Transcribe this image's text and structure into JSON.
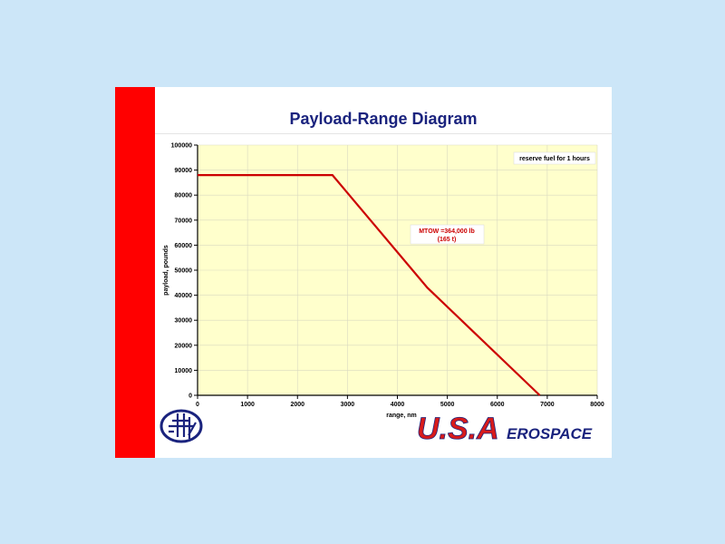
{
  "slide": {
    "title": "Payload-Range Diagram",
    "brand_text": "U.S.A",
    "brand_suffix": "EROSPACE",
    "colors": {
      "background": "#cce6f8",
      "side_bar": "#ff0000",
      "title": "#1a237e",
      "plot_bg": "#ffffcc",
      "line": "#cc0000",
      "brand_red": "#d81b1b",
      "brand_blue": "#1a237e"
    },
    "logo_icon": "aircraft-emblem-icon"
  },
  "chart_data": {
    "type": "line",
    "title": "",
    "xlabel": "range, nm",
    "ylabel": "payload, pounds",
    "xlim": [
      0,
      8000
    ],
    "ylim": [
      0,
      100000
    ],
    "x_ticks": [
      0,
      1000,
      2000,
      3000,
      4000,
      5000,
      6000,
      7000,
      8000
    ],
    "x_tick_labels": [
      "0",
      "1000",
      "2000",
      "3000",
      "4000",
      "5000",
      "6000",
      "7000",
      "8000"
    ],
    "y_ticks": [
      0,
      10000,
      20000,
      30000,
      40000,
      50000,
      60000,
      70000,
      80000,
      90000,
      100000
    ],
    "y_tick_labels": [
      "0",
      "10000",
      "20000",
      "30000",
      "40000",
      "50000",
      "60000",
      "70000",
      "80000",
      "90000",
      "100000"
    ],
    "grid": true,
    "series": [
      {
        "x": [
          0,
          2700,
          4600,
          6850
        ],
        "y": [
          88000,
          88000,
          43000,
          0
        ],
        "color": "#cc0000"
      }
    ],
    "annotations": {
      "reserve": "reserve fuel for 1 hours",
      "mtow_line1": "MTOW =364,000 lb",
      "mtow_line2": "(165 t)"
    }
  }
}
